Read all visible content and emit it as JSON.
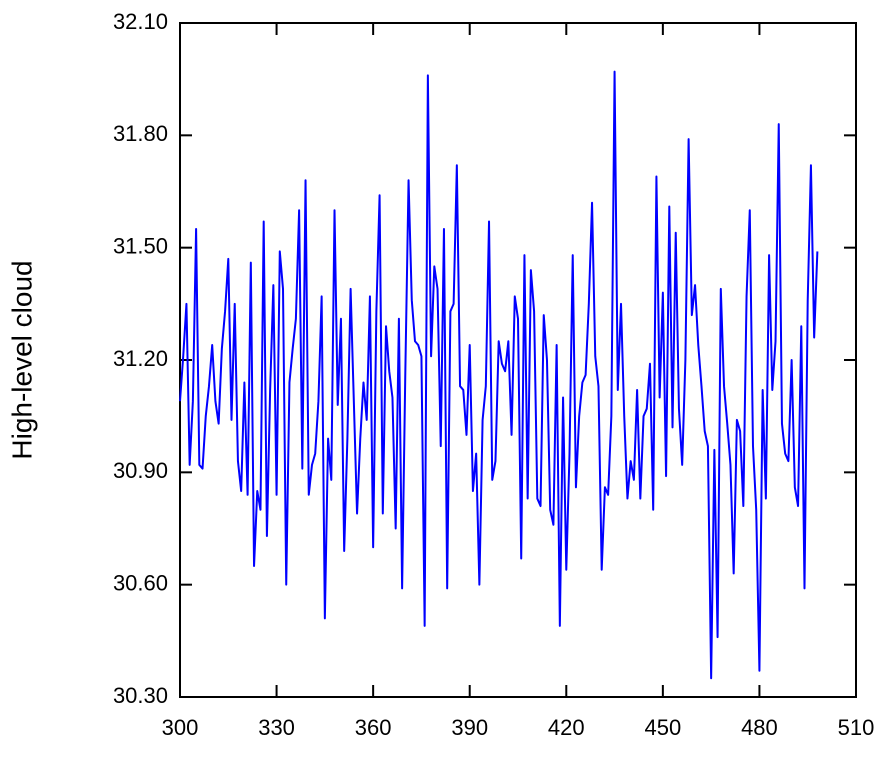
{
  "chart_data": {
    "type": "line",
    "y_label": "High-level cloud",
    "x": [
      300,
      301,
      302,
      303,
      304,
      305,
      306,
      307,
      308,
      309,
      310,
      311,
      312,
      313,
      314,
      315,
      316,
      317,
      318,
      319,
      320,
      321,
      322,
      323,
      324,
      325,
      326,
      327,
      328,
      329,
      330,
      331,
      332,
      333,
      334,
      335,
      336,
      337,
      338,
      339,
      340,
      341,
      342,
      343,
      344,
      345,
      346,
      347,
      348,
      349,
      350,
      351,
      352,
      353,
      354,
      355,
      356,
      357,
      358,
      359,
      360,
      361,
      362,
      363,
      364,
      365,
      366,
      367,
      368,
      369,
      370,
      371,
      372,
      373,
      374,
      375,
      376,
      377,
      378,
      379,
      380,
      381,
      382,
      383,
      384,
      385,
      386,
      387,
      388,
      389,
      390,
      391,
      392,
      393,
      394,
      395,
      396,
      397,
      398,
      399,
      400,
      401,
      402,
      403,
      404,
      405,
      406,
      407,
      408,
      409,
      410,
      411,
      412,
      413,
      414,
      415,
      416,
      417,
      418,
      419,
      420,
      421,
      422,
      423,
      424,
      425,
      426,
      427,
      428,
      429,
      430,
      431,
      432,
      433,
      434,
      435,
      436,
      437,
      438,
      439,
      440,
      441,
      442,
      443,
      444,
      445,
      446,
      447,
      448,
      449,
      450,
      451,
      452,
      453,
      454,
      455,
      456,
      457,
      458,
      459,
      460,
      461,
      462,
      463,
      464,
      465,
      466,
      467,
      468,
      469,
      470,
      471,
      472,
      473,
      474,
      475,
      476,
      477,
      478,
      479,
      480,
      481,
      482,
      483,
      484,
      485,
      486,
      487,
      488,
      489,
      490,
      491,
      492,
      493,
      494,
      495,
      496,
      497,
      498
    ],
    "series": [
      {
        "color": "#0000ff",
        "values": [
          31.09,
          31.21,
          31.35,
          30.92,
          31.09,
          31.55,
          30.92,
          30.91,
          31.05,
          31.13,
          31.24,
          31.09,
          31.03,
          31.23,
          31.33,
          31.47,
          31.04,
          31.35,
          30.93,
          30.85,
          31.14,
          30.84,
          31.46,
          30.65,
          30.85,
          30.8,
          31.57,
          30.73,
          31.12,
          31.4,
          30.84,
          31.49,
          31.39,
          30.6,
          31.14,
          31.23,
          31.31,
          31.6,
          30.91,
          31.68,
          30.84,
          30.92,
          30.95,
          31.09,
          31.37,
          30.51,
          30.99,
          30.88,
          31.6,
          31.08,
          31.31,
          30.69,
          30.99,
          31.39,
          31.09,
          30.79,
          30.99,
          31.14,
          31.04,
          31.37,
          30.7,
          31.33,
          31.64,
          30.79,
          31.29,
          31.17,
          31.1,
          30.75,
          31.31,
          30.59,
          31.17,
          31.68,
          31.36,
          31.25,
          31.24,
          31.21,
          30.49,
          31.96,
          31.21,
          31.45,
          31.39,
          30.97,
          31.55,
          30.59,
          31.33,
          31.35,
          31.72,
          31.13,
          31.12,
          31.0,
          31.24,
          30.85,
          30.95,
          30.6,
          31.04,
          31.13,
          31.57,
          30.88,
          30.93,
          31.25,
          31.19,
          31.17,
          31.25,
          31.0,
          31.37,
          31.31,
          30.67,
          31.48,
          30.83,
          31.44,
          31.33,
          30.83,
          30.81,
          31.32,
          31.2,
          30.8,
          30.76,
          31.24,
          30.49,
          31.1,
          30.64,
          30.95,
          31.48,
          30.86,
          31.05,
          31.14,
          31.16,
          31.35,
          31.62,
          31.21,
          31.13,
          30.64,
          30.86,
          30.84,
          31.05,
          31.97,
          31.12,
          31.35,
          31.05,
          30.83,
          30.93,
          30.88,
          31.12,
          30.83,
          31.05,
          31.07,
          31.19,
          30.8,
          31.69,
          31.1,
          31.38,
          30.89,
          31.61,
          31.02,
          31.54,
          31.07,
          30.92,
          31.2,
          31.79,
          31.32,
          31.4,
          31.24,
          31.13,
          31.01,
          30.97,
          30.35,
          30.96,
          30.46,
          31.39,
          31.13,
          31.03,
          30.92,
          30.63,
          31.04,
          31.01,
          30.81,
          31.37,
          31.6,
          30.97,
          30.8,
          30.37,
          31.12,
          30.83,
          31.48,
          31.12,
          31.25,
          31.83,
          31.03,
          30.95,
          30.93,
          31.2,
          30.86,
          30.81,
          31.29,
          30.59,
          31.36,
          31.72,
          31.26,
          31.49
        ]
      }
    ],
    "xlim": [
      300,
      510
    ],
    "xticks": [
      300,
      330,
      360,
      390,
      420,
      450,
      480,
      510
    ],
    "ylim": [
      30.3,
      32.1
    ],
    "yticks": [
      {
        "value": 30.3,
        "label": "30.30"
      },
      {
        "value": 30.6,
        "label": "30.60"
      },
      {
        "value": 30.9,
        "label": "30.90"
      },
      {
        "value": 31.2,
        "label": "31.20"
      },
      {
        "value": 31.5,
        "label": "31.50"
      },
      {
        "value": 31.8,
        "label": "31.80"
      },
      {
        "value": 32.1,
        "label": "32.10"
      }
    ]
  }
}
